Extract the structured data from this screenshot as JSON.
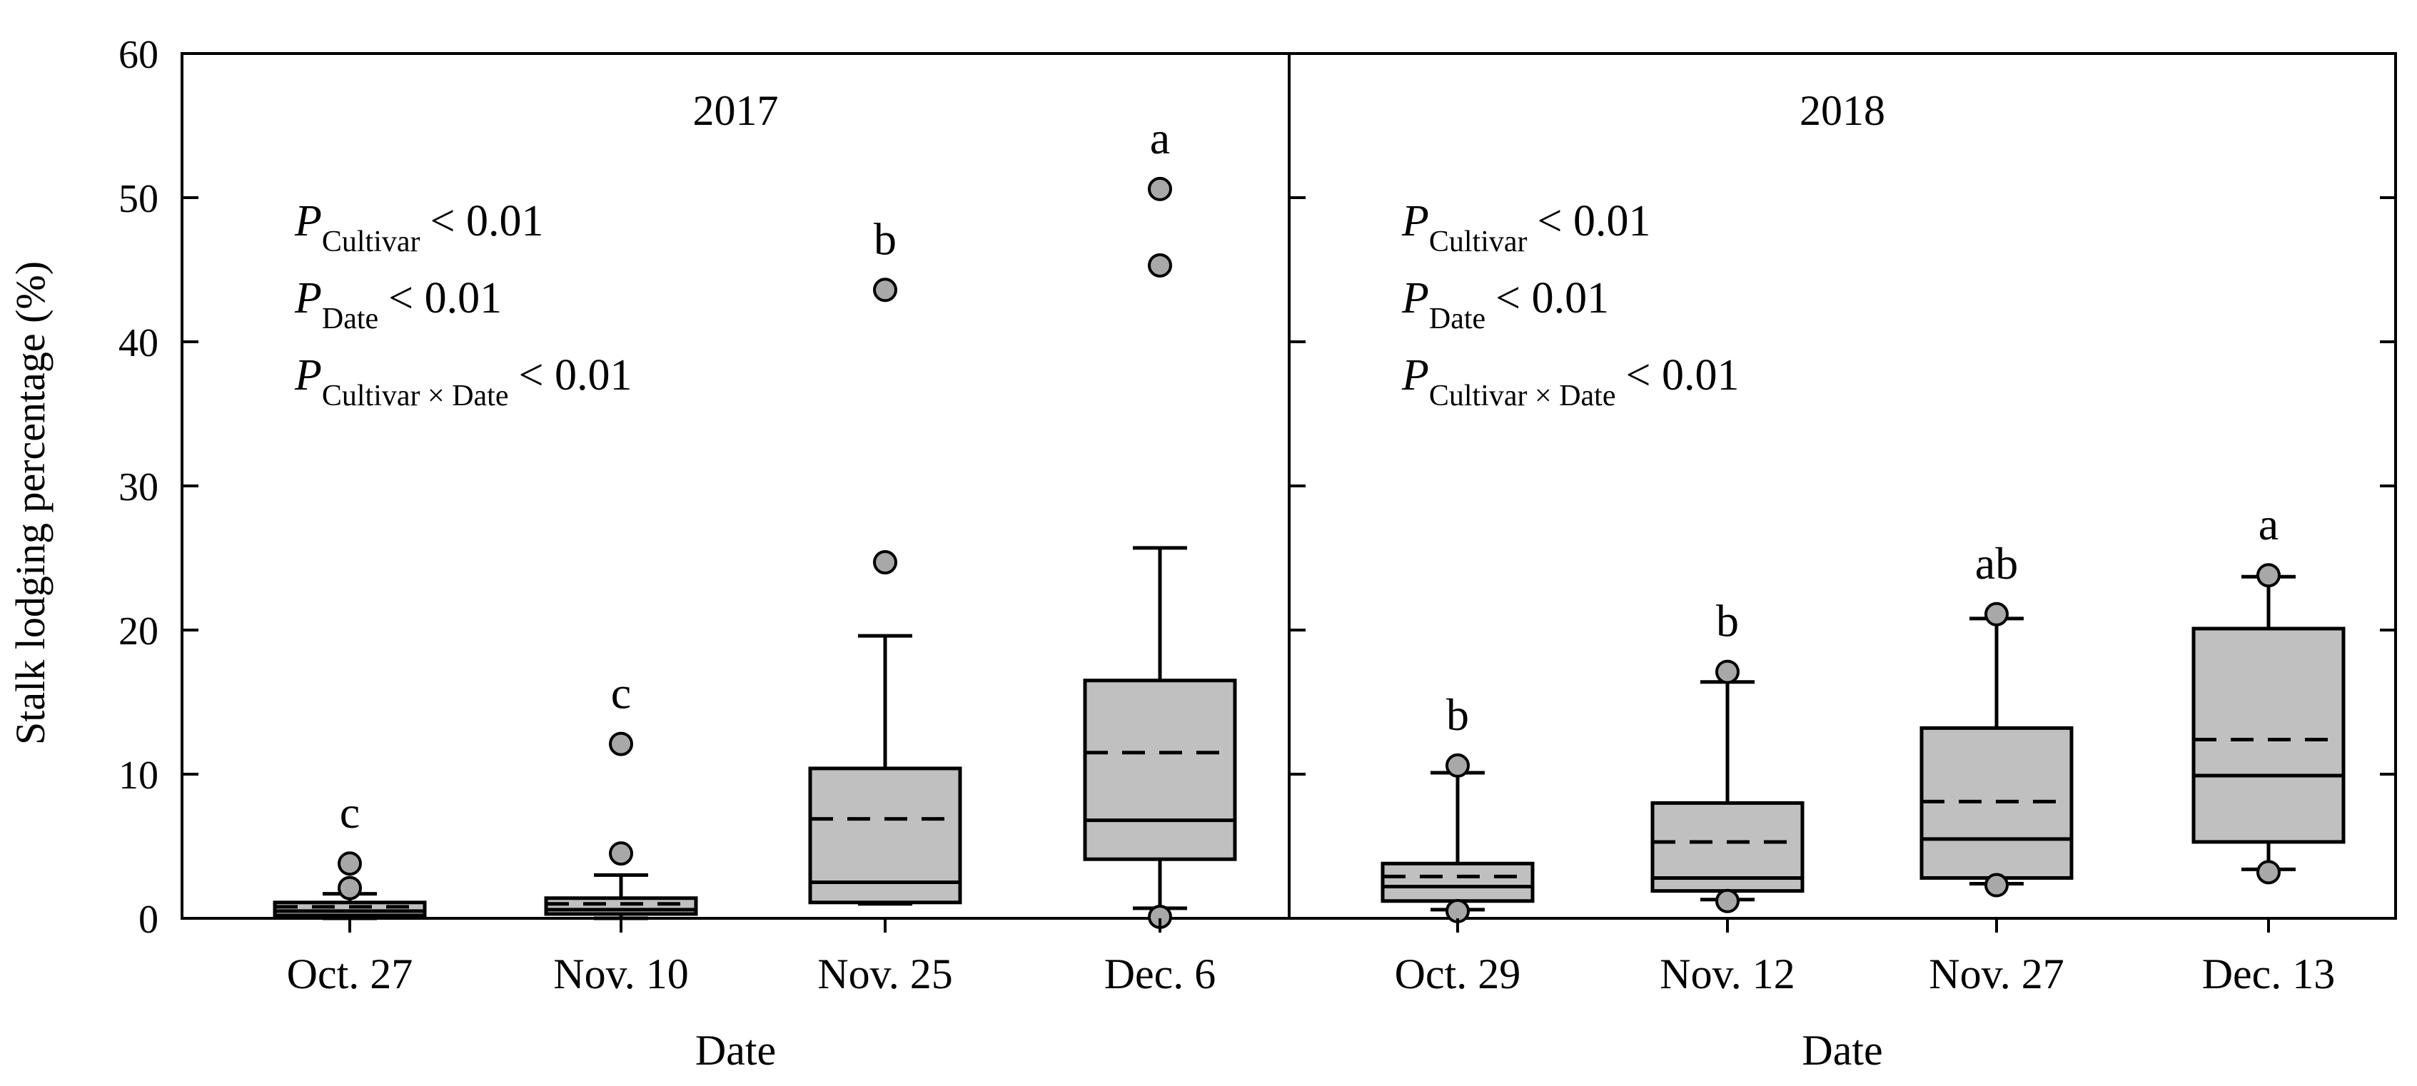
{
  "chart_data": {
    "type": "box",
    "ylabel": "Stalk lodging percentage (%)",
    "ylim": [
      0,
      60
    ],
    "yticks": [
      "0",
      "10",
      "20",
      "30",
      "40",
      "50",
      "60"
    ],
    "panels": [
      {
        "title": "2017",
        "xlabel": "Date",
        "stats_lines": [
          {
            "p": "P",
            "sub": "Cultivar",
            "rest": "< 0.01"
          },
          {
            "p": "P",
            "sub": "Date",
            "rest": "< 0.01"
          },
          {
            "p": "P",
            "sub": "Cultivar × Date",
            "rest": "< 0.01"
          }
        ],
        "boxes": [
          {
            "label": "Oct. 27",
            "whisker_low": 0,
            "q1": 0.2,
            "median": 0.5,
            "mean": 0.8,
            "q3": 1.1,
            "whisker_high": 1.7,
            "outliers": [
              2.1,
              3.8
            ],
            "letter": "c"
          },
          {
            "label": "Nov. 10",
            "whisker_low": 0,
            "q1": 0.3,
            "median": 0.6,
            "mean": 1.0,
            "q3": 1.4,
            "whisker_high": 3.0,
            "outliers": [
              4.5,
              12.1
            ],
            "letter": "c"
          },
          {
            "label": "Nov. 25",
            "whisker_low": 1.0,
            "q1": 1.1,
            "median": 2.5,
            "mean": 6.9,
            "q3": 10.4,
            "whisker_high": 19.6,
            "outliers": [
              24.7,
              43.6
            ],
            "letter": "b"
          },
          {
            "label": "Dec. 6",
            "whisker_low": 0.7,
            "q1": 4.1,
            "median": 6.8,
            "mean": 11.5,
            "q3": 16.5,
            "whisker_high": 25.7,
            "outliers": [
              0.1,
              45.3,
              50.6
            ],
            "letter": "a"
          }
        ]
      },
      {
        "title": "2018",
        "xlabel": "Date",
        "stats_lines": [
          {
            "p": "P",
            "sub": "Cultivar",
            "rest": "< 0.01"
          },
          {
            "p": "P",
            "sub": "Date",
            "rest": "< 0.01"
          },
          {
            "p": "P",
            "sub": "Cultivar × Date",
            "rest": "< 0.01"
          }
        ],
        "boxes": [
          {
            "label": "Oct. 29",
            "whisker_low": 0.6,
            "q1": 1.2,
            "median": 2.2,
            "mean": 2.9,
            "q3": 3.8,
            "whisker_high": 10.1,
            "outliers": [
              0.5,
              10.6
            ],
            "letter": "b"
          },
          {
            "label": "Nov. 12",
            "whisker_low": 1.3,
            "q1": 1.9,
            "median": 2.8,
            "mean": 5.3,
            "q3": 8.0,
            "whisker_high": 16.4,
            "outliers": [
              1.2,
              17.1
            ],
            "letter": "b"
          },
          {
            "label": "Nov. 27",
            "whisker_low": 2.4,
            "q1": 2.8,
            "median": 5.5,
            "mean": 8.1,
            "q3": 13.2,
            "whisker_high": 20.8,
            "outliers": [
              2.3,
              21.1
            ],
            "letter": "ab"
          },
          {
            "label": "Dec. 13",
            "whisker_low": 3.4,
            "q1": 5.3,
            "median": 9.9,
            "mean": 12.4,
            "q3": 20.1,
            "whisker_high": 23.7,
            "outliers": [
              3.2,
              23.8
            ],
            "letter": "a"
          }
        ]
      }
    ]
  }
}
